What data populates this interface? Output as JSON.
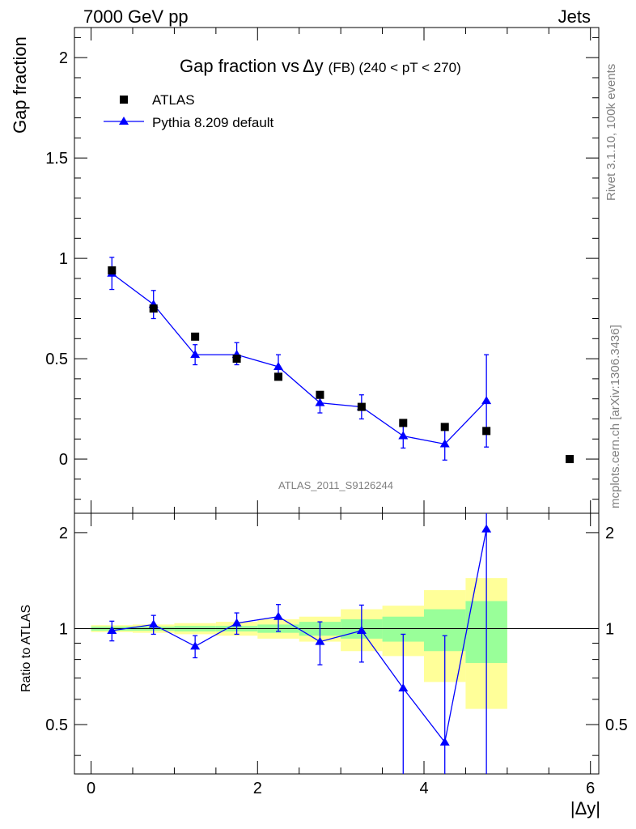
{
  "header": {
    "left": "7000 GeV pp",
    "right": "Jets"
  },
  "chart_data": [
    {
      "type": "scatter",
      "title_main": "Gap fraction vs",
      "title_delta": "Δy",
      "title_suffix": "(FB) (240 < pT < 270)",
      "ylabel": "Gap fraction",
      "xlim": [
        -0.2,
        6.1
      ],
      "ylim": [
        -0.27,
        2.15
      ],
      "yticks": [
        0,
        0.5,
        1,
        1.5,
        2
      ],
      "ytick_labels": [
        "0",
        "0.5",
        "1",
        "1.5",
        "2"
      ],
      "legend_placement": "top-left",
      "watermark": "ATLAS_2011_S9126244",
      "series": [
        {
          "name": "ATLAS",
          "marker": "square",
          "color": "#000000",
          "x": [
            0.25,
            0.75,
            1.25,
            1.75,
            2.25,
            2.75,
            3.25,
            3.75,
            4.25,
            4.75,
            5.75
          ],
          "y": [
            0.94,
            0.75,
            0.61,
            0.5,
            0.41,
            0.32,
            0.26,
            0.18,
            0.16,
            0.14,
            0.0
          ]
        },
        {
          "name": "Pythia 8.209 default",
          "marker": "triangle",
          "color": "#0000ff",
          "x": [
            0.25,
            0.75,
            1.25,
            1.75,
            2.25,
            2.75,
            3.25,
            3.75,
            4.25,
            4.75
          ],
          "y": [
            0.925,
            0.77,
            0.52,
            0.52,
            0.46,
            0.28,
            0.26,
            0.115,
            0.075,
            0.29
          ],
          "yerr_low": [
            0.08,
            0.07,
            0.05,
            0.05,
            0.06,
            0.05,
            0.06,
            0.06,
            0.08,
            0.23
          ],
          "yerr_high": [
            0.08,
            0.07,
            0.05,
            0.06,
            0.06,
            0.05,
            0.06,
            0.06,
            0.07,
            0.23
          ]
        }
      ]
    },
    {
      "type": "scatter",
      "ylabel": "Ratio to ATLAS",
      "xlabel": "|Δy|",
      "xlim": [
        -0.2,
        6.1
      ],
      "ylim": [
        0.35,
        2.3
      ],
      "yticks": [
        0.5,
        1,
        2
      ],
      "ytick_labels": [
        "0.5",
        "1",
        "2"
      ],
      "xticks": [
        0,
        2,
        4,
        6
      ],
      "xtick_labels": [
        "0",
        "2",
        "4",
        "6"
      ],
      "reference_line": 1,
      "bands": {
        "x_edges": [
          0.0,
          0.5,
          1.0,
          1.5,
          2.0,
          2.5,
          3.0,
          3.5,
          4.0,
          4.5,
          5.0
        ],
        "inner_color": "#99ff99",
        "outer_color": "#ffff99",
        "inner_low": [
          0.985,
          0.985,
          0.98,
          0.98,
          0.97,
          0.95,
          0.93,
          0.91,
          0.85,
          0.78,
          0.5
        ],
        "inner_high": [
          1.015,
          1.015,
          1.02,
          1.02,
          1.03,
          1.05,
          1.07,
          1.09,
          1.15,
          1.22,
          1.67
        ],
        "outer_low": [
          0.975,
          0.97,
          0.96,
          0.95,
          0.93,
          0.91,
          0.85,
          0.82,
          0.68,
          0.56,
          0.0
        ],
        "outer_high": [
          1.025,
          1.03,
          1.04,
          1.05,
          1.07,
          1.09,
          1.15,
          1.18,
          1.32,
          1.44,
          2.15
        ]
      },
      "series": [
        {
          "name": "Pythia 8.209 default",
          "marker": "triangle",
          "color": "#0000ff",
          "x": [
            0.25,
            0.75,
            1.25,
            1.75,
            2.25,
            2.75,
            3.25,
            3.75,
            4.25,
            4.75
          ],
          "y": [
            0.985,
            1.03,
            0.88,
            1.04,
            1.09,
            0.91,
            0.985,
            0.65,
            0.44,
            2.05
          ],
          "yerr_low": [
            0.07,
            0.07,
            0.07,
            0.08,
            0.11,
            0.14,
            0.2,
            0.33,
            0.1,
            1.7
          ],
          "yerr_high": [
            0.07,
            0.07,
            0.07,
            0.08,
            0.1,
            0.14,
            0.2,
            0.31,
            0.51,
            0.25
          ]
        }
      ]
    }
  ],
  "side_labels": {
    "rivet": "Rivet 3.1.10,  100k events",
    "mcplots": "mcplots.cern.ch [arXiv:1306.3436]"
  }
}
